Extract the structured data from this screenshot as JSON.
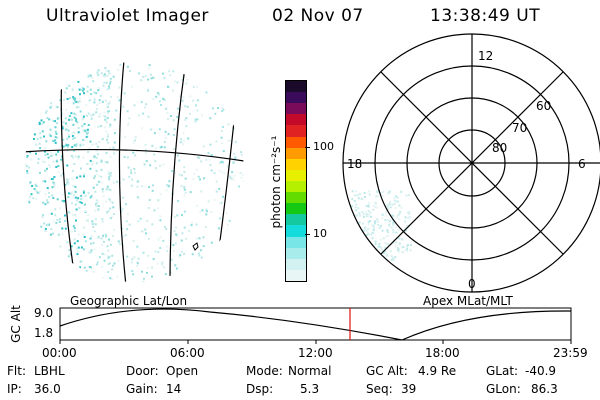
{
  "header": {
    "instrument": "Ultraviolet Imager",
    "date": "02 Nov 07",
    "time": "13:38:49 UT"
  },
  "projections": {
    "left": "Geographic Lat/Lon",
    "right": "Apex MLat/MLT"
  },
  "colorbar": {
    "unit_label": "photon cm⁻²s⁻¹",
    "ticks": [
      "100",
      "10"
    ],
    "scale": "log",
    "colors": [
      "#1b0a2a",
      "#3a0b5a",
      "#7a0b5a",
      "#c40a2a",
      "#e02222",
      "#ff5a00",
      "#ff9a00",
      "#ffd200",
      "#e6f000",
      "#b4f000",
      "#64dc00",
      "#14c814",
      "#14c8a0",
      "#14dcdc",
      "#78e6e6",
      "#a9ecec",
      "#d2f2f2",
      "#e8f6f6"
    ]
  },
  "polar": {
    "lat_labels": [
      "60",
      "70",
      "80"
    ],
    "mlt_labels": {
      "top": "12",
      "bottom": "0",
      "left": "18",
      "right": "6"
    }
  },
  "timeline": {
    "ylabel": "GC Alt",
    "y_ticks": [
      "9.0",
      "1.8"
    ],
    "x_ticks": [
      "00:00",
      "06:00",
      "12:00",
      "18:00",
      "23:59"
    ],
    "current_time_marker": "13:38"
  },
  "info": {
    "row1": [
      {
        "label": "Flt:",
        "value": "LBHL"
      },
      {
        "label": "Door:",
        "value": "Open"
      },
      {
        "label": "Mode:",
        "value": "Normal"
      },
      {
        "label": "GC Alt:",
        "value": "4.9 Re"
      },
      {
        "label": "GLat:",
        "value": "-40.9"
      }
    ],
    "row2": [
      {
        "label": "IP:",
        "value": "36.0"
      },
      {
        "label": "Gain:",
        "value": "14"
      },
      {
        "label": "Dsp:",
        "value": "5.3"
      },
      {
        "label": "Seq:",
        "value": "39"
      },
      {
        "label": "GLon:",
        "value": "86.3"
      }
    ]
  }
}
